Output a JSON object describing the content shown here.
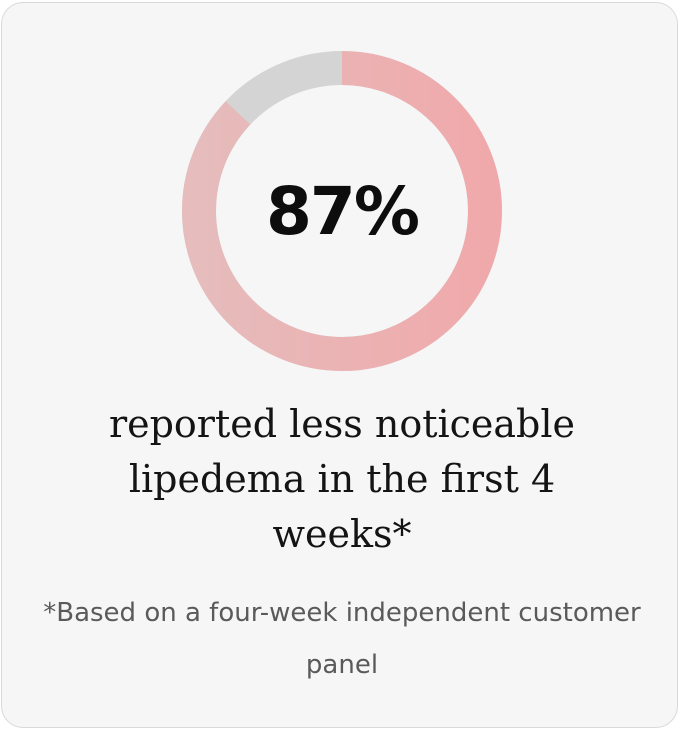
{
  "stat": {
    "value_text": "87%",
    "percent": 87
  },
  "headline": "reported less noticeable lipedema in the first 4 weeks*",
  "footnote": "*Based on a four-week independent customer panel",
  "colors": {
    "card_background": "#f6f6f6",
    "card_border": "#d9d9d9",
    "ring_track": "#d4d4d4",
    "ring_fill_start": "#e6bcbc",
    "ring_fill_end": "#f0a9ab",
    "text_primary": "#141414",
    "text_secondary": "#5a5a5a"
  }
}
